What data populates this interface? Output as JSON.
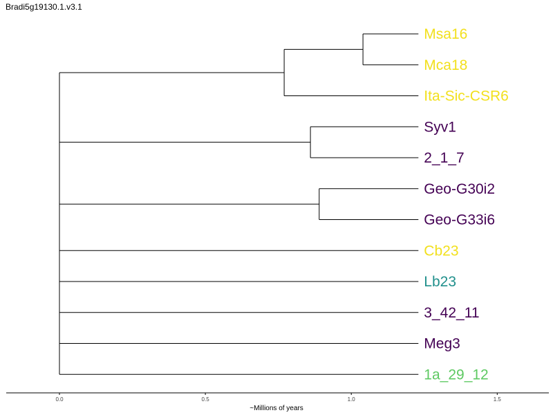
{
  "title": "Bradi5g19130.1.v3.1",
  "colors": {
    "yellow": "#f2e01e",
    "purple": "#440154",
    "teal": "#21908c",
    "green": "#5ec962",
    "branch": "#000000"
  },
  "chart_data": {
    "type": "dendrogram",
    "xlabel": "~Millions of years",
    "xticks": [
      "0.0",
      "0.5",
      "1.0",
      "1.5"
    ],
    "xtick_values": [
      0.0,
      0.5,
      1.0,
      1.5
    ],
    "xlim": [
      -0.18,
      1.68
    ],
    "root_age": 0.0,
    "leaves": [
      {
        "name": "Msa16",
        "color": "#f2e01e",
        "depth": 1.23
      },
      {
        "name": "Mca18",
        "color": "#f2e01e",
        "depth": 1.23
      },
      {
        "name": "Ita-Sic-CSR6",
        "color": "#f2e01e",
        "depth": 1.23
      },
      {
        "name": "Syv1",
        "color": "#440154",
        "depth": 1.23
      },
      {
        "name": "2_1_7",
        "color": "#440154",
        "depth": 1.23
      },
      {
        "name": "Geo-G30i2",
        "color": "#440154",
        "depth": 1.23
      },
      {
        "name": "Geo-G33i6",
        "color": "#440154",
        "depth": 1.23
      },
      {
        "name": "Cb23",
        "color": "#f2e01e",
        "depth": 1.23
      },
      {
        "name": "Lb23",
        "color": "#21908c",
        "depth": 1.23
      },
      {
        "name": "3_42_11",
        "color": "#440154",
        "depth": 1.23
      },
      {
        "name": "Meg3",
        "color": "#440154",
        "depth": 1.23
      },
      {
        "name": "1a_29_12",
        "color": "#5ec962",
        "depth": 1.23
      }
    ],
    "clades": [
      {
        "depth": 1.04,
        "children": [
          "Msa16",
          "Mca18"
        ]
      },
      {
        "depth": 0.77,
        "children": [
          [
            "Msa16",
            "Mca18"
          ],
          "Ita-Sic-CSR6"
        ]
      },
      {
        "depth": 0.86,
        "children": [
          "Syv1",
          "2_1_7"
        ]
      },
      {
        "depth": 0.89,
        "children": [
          "Geo-G30i2",
          "Geo-G33i6"
        ]
      }
    ]
  }
}
